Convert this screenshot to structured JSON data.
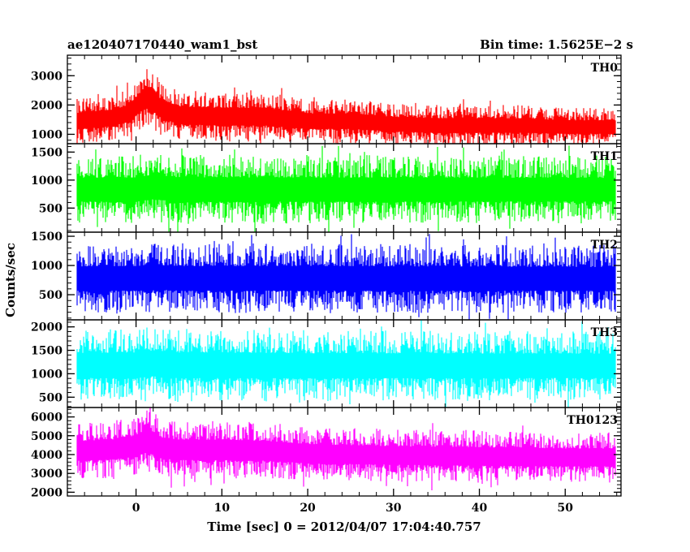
{
  "chart_data": {
    "type": "line",
    "title_left": "ae120407170440_wam1_bst",
    "title_right": "Bin time: 1.5625E−2 s",
    "xlabel": "Time [sec] 0 = 2012/04/07 17:04:40.757",
    "ylabel": "Counts/sec",
    "xlim": [
      -8,
      56.5
    ],
    "x_ticks": [
      0,
      10,
      20,
      30,
      40,
      50
    ],
    "x_tick_labels": [
      "0",
      "10",
      "20",
      "30",
      "40",
      "50"
    ],
    "bin_time": 0.015625,
    "grid": false,
    "panels": [
      {
        "name": "TH0",
        "color": "#ff0000",
        "ylim": [
          680,
          3700
        ],
        "yticks": [
          1000,
          2000,
          3000
        ],
        "ytick_labels": [
          "1000",
          "2000",
          "3000"
        ],
        "envelope": {
          "x": [
            -6.9,
            -5,
            -3,
            -1,
            0,
            1,
            2,
            3,
            5,
            10,
            15,
            20,
            25,
            30,
            35,
            40,
            45,
            50,
            55.8
          ],
          "mean": [
            1450,
            1500,
            1550,
            1700,
            1950,
            2250,
            2150,
            1850,
            1650,
            1600,
            1600,
            1450,
            1450,
            1350,
            1300,
            1300,
            1300,
            1250,
            1250
          ],
          "amplitude": [
            800,
            800,
            800,
            800,
            900,
            1000,
            1000,
            900,
            850,
            850,
            850,
            750,
            750,
            700,
            700,
            700,
            700,
            650,
            650
          ]
        }
      },
      {
        "name": "TH1",
        "color": "#00ff00",
        "ylim": [
          70,
          1650
        ],
        "yticks": [
          500,
          1000,
          1500
        ],
        "ytick_labels": [
          "500",
          "1000",
          "1500"
        ],
        "envelope": {
          "x": [
            -6.9,
            0,
            2,
            5,
            20,
            55.8
          ],
          "mean": [
            830,
            830,
            880,
            830,
            830,
            830
          ],
          "amplitude": [
            600,
            620,
            620,
            620,
            620,
            600
          ]
        }
      },
      {
        "name": "TH2",
        "color": "#0000ff",
        "ylim": [
          70,
          1570
        ],
        "yticks": [
          500,
          1000,
          1500
        ],
        "ytick_labels": [
          "500",
          "1000",
          "1500"
        ],
        "envelope": {
          "x": [
            -6.9,
            0,
            2,
            5,
            20,
            55.8
          ],
          "mean": [
            780,
            780,
            800,
            780,
            780,
            770
          ],
          "amplitude": [
            580,
            600,
            600,
            600,
            600,
            580
          ]
        }
      },
      {
        "name": "TH3",
        "color": "#00ffff",
        "ylim": [
          280,
          2150
        ],
        "yticks": [
          500,
          1000,
          1500,
          2000
        ],
        "ytick_labels": [
          "500",
          "1000",
          "1500",
          "2000"
        ],
        "envelope": {
          "x": [
            -6.9,
            0,
            2,
            5,
            20,
            55.8
          ],
          "mean": [
            1180,
            1180,
            1220,
            1180,
            1170,
            1170
          ],
          "amplitude": [
            750,
            780,
            780,
            780,
            760,
            740
          ]
        }
      },
      {
        "name": "TH0123",
        "color": "#ff00ff",
        "ylim": [
          1800,
          6500
        ],
        "yticks": [
          2000,
          3000,
          4000,
          5000,
          6000
        ],
        "ytick_labels": [
          "2000",
          "3000",
          "4000",
          "5000",
          "6000"
        ],
        "envelope": {
          "x": [
            -6.9,
            -3,
            0,
            1,
            2,
            3,
            5,
            10,
            15,
            20,
            30,
            40,
            50,
            55.8
          ],
          "mean": [
            4200,
            4250,
            4450,
            4700,
            4600,
            4350,
            4250,
            4250,
            4200,
            4050,
            3950,
            3900,
            3850,
            3850
          ],
          "amplitude": [
            1500,
            1500,
            1600,
            1700,
            1700,
            1600,
            1550,
            1550,
            1500,
            1450,
            1400,
            1400,
            1350,
            1350
          ]
        }
      }
    ]
  }
}
